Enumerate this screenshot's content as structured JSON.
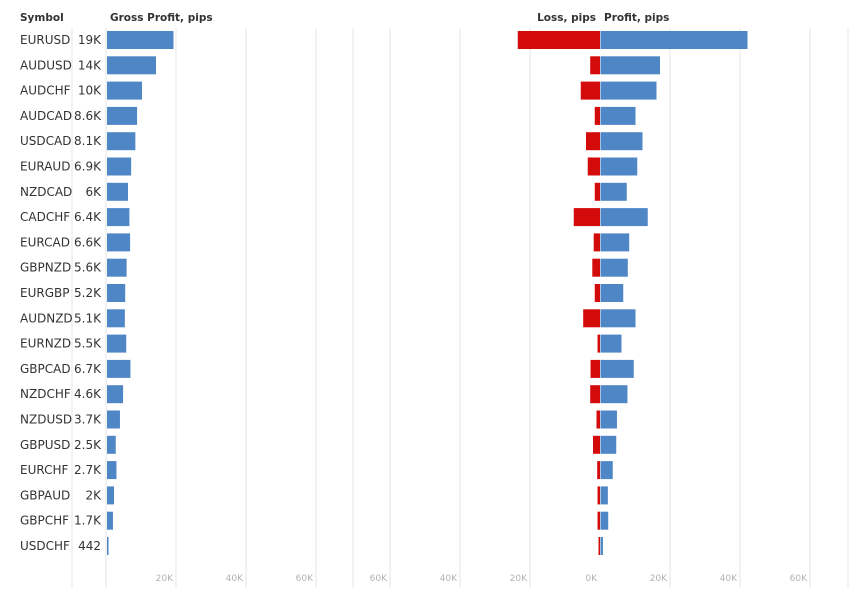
{
  "headers": {
    "symbol": "Symbol",
    "gross": "Gross Profit, pips",
    "loss": "Loss, pips",
    "profit": "Profit, pips"
  },
  "colors": {
    "profit": "#4f86c6",
    "loss": "#d40b0b",
    "grid": "#e6e6e6",
    "tick_text": "#b3b3b3"
  },
  "chart_data": {
    "type": "bar",
    "orientation": "horizontal",
    "categories": [
      "EURUSD",
      "AUDUSD",
      "AUDCHF",
      "AUDCAD",
      "USDCAD",
      "EURAUD",
      "NZDCAD",
      "CADCHF",
      "EURCAD",
      "GBPNZD",
      "EURGBP",
      "AUDNZD",
      "EURNZD",
      "GBPCAD",
      "NZDCHF",
      "NZDUSD",
      "GBPUSD",
      "EURCHF",
      "GBPAUD",
      "GBPCHF",
      "USDCHF"
    ],
    "gross_profit_labels": [
      "19K",
      "14K",
      "10K",
      "8.6K",
      "8.1K",
      "6.9K",
      "6K",
      "6.4K",
      "6.6K",
      "5.6K",
      "5.2K",
      "5.1K",
      "5.5K",
      "6.7K",
      "4.6K",
      "3.7K",
      "2.5K",
      "2.7K",
      "2K",
      "1.7K",
      "442"
    ],
    "series": [
      {
        "name": "Gross Profit, pips",
        "values": [
          19000,
          14000,
          10000,
          8600,
          8100,
          6900,
          6000,
          6400,
          6600,
          5600,
          5200,
          5100,
          5500,
          6700,
          4600,
          3700,
          2500,
          2700,
          2000,
          1700,
          442
        ]
      },
      {
        "name": "Loss, pips",
        "values": [
          -23500,
          -2800,
          -5500,
          -1500,
          -4000,
          -3500,
          -1500,
          -7500,
          -1800,
          -2200,
          -1500,
          -4800,
          -700,
          -2700,
          -2800,
          -1000,
          -2000,
          -800,
          -700,
          -700,
          -150
        ]
      },
      {
        "name": "Profit, pips",
        "values": [
          42000,
          17000,
          16000,
          10000,
          12000,
          10500,
          7500,
          13500,
          8200,
          7800,
          6500,
          10000,
          6000,
          9500,
          7700,
          4700,
          4500,
          3500,
          2100,
          2200,
          700
        ]
      }
    ],
    "gross_axis": {
      "range": [
        0,
        70000
      ],
      "ticks": [
        20000,
        40000,
        60000
      ],
      "tick_labels": [
        "20K",
        "40K",
        "60K"
      ]
    },
    "diverging_axis": {
      "range": [
        -60000,
        60000
      ],
      "ticks": [
        -60000,
        -40000,
        -20000,
        0,
        20000,
        40000,
        60000
      ],
      "tick_labels": [
        "60K",
        "40K",
        "20K",
        "0K",
        "20K",
        "40K",
        "60K"
      ]
    },
    "grid": true,
    "legend": "none"
  }
}
